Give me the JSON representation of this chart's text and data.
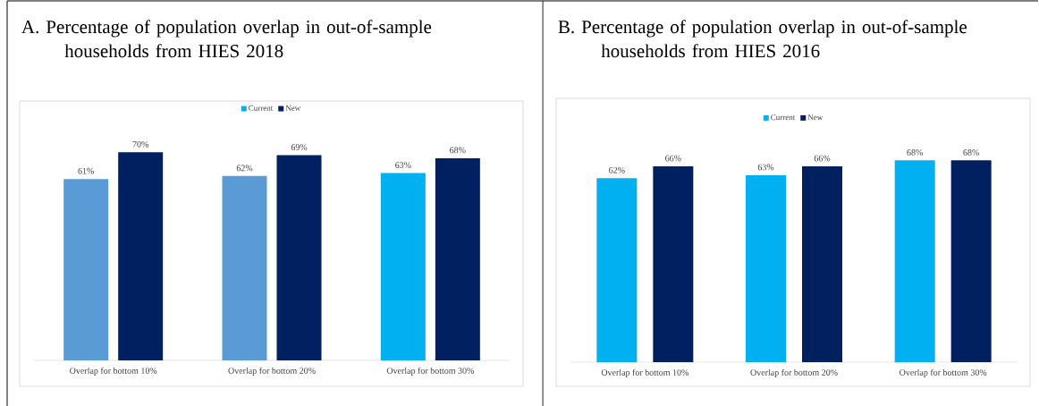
{
  "chart_data": [
    {
      "type": "bar",
      "title": "A. Percentage of population overlap in out-of-sample households from HIES 2018",
      "categories": [
        "Overlap for bottom 10%",
        "Overlap for bottom 20%",
        "Overlap for bottom 30%"
      ],
      "series": [
        {
          "name": "Current",
          "color": "#00b0f0",
          "colors": [
            "#5b9bd5",
            "#5b9bd5",
            "#00b0f0"
          ],
          "values": [
            61,
            62,
            63
          ],
          "value_labels": [
            "61%",
            "62%",
            "63%"
          ]
        },
        {
          "name": "New",
          "color": "#002060",
          "values": [
            70,
            69,
            68
          ],
          "value_labels": [
            "70%",
            "69%",
            "68%"
          ]
        }
      ],
      "legend": "top"
    },
    {
      "type": "bar",
      "title": "B. Percentage of population overlap in out-of-sample households from HIES 2016",
      "categories": [
        "Overlap for bottom 10%",
        "Overlap for bottom 20%",
        "Overlap for bottom 30%"
      ],
      "series": [
        {
          "name": "Current",
          "color": "#00b0f0",
          "values": [
            62,
            63,
            68
          ],
          "value_labels": [
            "62%",
            "63%",
            "68%"
          ]
        },
        {
          "name": "New",
          "color": "#002060",
          "values": [
            66,
            66,
            68
          ],
          "value_labels": [
            "66%",
            "66%",
            "68%"
          ]
        }
      ],
      "legend": "top"
    }
  ]
}
